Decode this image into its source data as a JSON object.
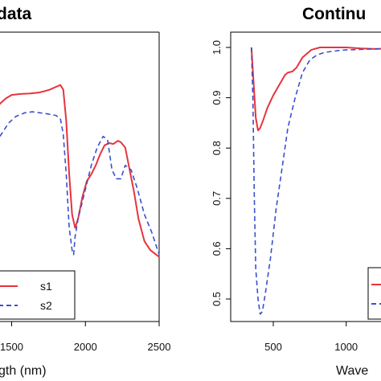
{
  "chart_data": [
    {
      "type": "line",
      "title": "data",
      "xlabel": "gth (nm)",
      "ylabel": "",
      "xlim": [
        400,
        2500
      ],
      "x_ticks": [
        {
          "value": 1500,
          "label": "1500"
        },
        {
          "value": 2000,
          "label": "2000"
        },
        {
          "value": 2500,
          "label": "2500"
        }
      ],
      "y_ticks": [],
      "grid": false,
      "legend": {
        "placement": "bottom-left",
        "entries": [
          "s1",
          "s2"
        ]
      },
      "series": [
        {
          "name": "s1",
          "color": "#e8333c",
          "style": "solid",
          "x": [
            1330,
            1370,
            1410,
            1460,
            1500,
            1560,
            1620,
            1680,
            1720,
            1760,
            1800,
            1830,
            1850,
            1870,
            1890,
            1910,
            1930,
            1950,
            1980,
            2010,
            2040,
            2070,
            2100,
            2130,
            2160,
            2190,
            2220,
            2240,
            2270,
            2300,
            2330,
            2360,
            2400,
            2440,
            2480,
            2500
          ],
          "y": [
            0.905,
            0.92,
            0.935,
            0.95,
            0.958,
            0.96,
            0.961,
            0.963,
            0.966,
            0.97,
            0.976,
            0.98,
            0.97,
            0.9,
            0.78,
            0.69,
            0.66,
            0.68,
            0.73,
            0.765,
            0.78,
            0.8,
            0.825,
            0.845,
            0.85,
            0.848,
            0.855,
            0.852,
            0.84,
            0.79,
            0.74,
            0.68,
            0.63,
            0.61,
            0.6,
            0.595
          ]
        },
        {
          "name": "s2",
          "color": "#3b4fd0",
          "style": "dashed",
          "x": [
            1330,
            1380,
            1430,
            1480,
            1530,
            1590,
            1640,
            1690,
            1750,
            1800,
            1830,
            1850,
            1870,
            1890,
            1910,
            1920,
            1930,
            1950,
            1980,
            2010,
            2040,
            2080,
            2120,
            2150,
            2180,
            2210,
            2240,
            2270,
            2310,
            2350,
            2400,
            2450,
            2500
          ],
          "y": [
            0.82,
            0.845,
            0.87,
            0.895,
            0.91,
            0.918,
            0.92,
            0.918,
            0.915,
            0.912,
            0.905,
            0.87,
            0.78,
            0.66,
            0.61,
            0.6,
            0.64,
            0.68,
            0.72,
            0.76,
            0.8,
            0.84,
            0.865,
            0.858,
            0.79,
            0.77,
            0.77,
            0.8,
            0.79,
            0.75,
            0.69,
            0.65,
            0.6
          ]
        }
      ]
    },
    {
      "type": "line",
      "title": "Continu",
      "xlabel": "Wave",
      "ylabel": "",
      "xlim": [
        300,
        1500
      ],
      "ylim": [
        0.465,
        1.025
      ],
      "x_ticks": [
        {
          "value": 500,
          "label": "500"
        },
        {
          "value": 1000,
          "label": "1000"
        }
      ],
      "y_ticks": [
        {
          "value": 0.5,
          "label": "0.5"
        },
        {
          "value": 0.6,
          "label": "0.6"
        },
        {
          "value": 0.7,
          "label": "0.7"
        },
        {
          "value": 0.8,
          "label": "0.8"
        },
        {
          "value": 0.9,
          "label": "0.9"
        },
        {
          "value": 1.0,
          "label": "1.0"
        }
      ],
      "grid": false,
      "legend": {
        "placement": "bottom-right",
        "entries": []
      },
      "series": [
        {
          "color": "#e8333c",
          "style": "solid",
          "x": [
            350,
            365,
            380,
            395,
            410,
            430,
            460,
            500,
            550,
            580,
            600,
            630,
            660,
            700,
            760,
            820,
            900,
            1000,
            1100,
            1200,
            1300,
            1400,
            1500
          ],
          "y": [
            1.0,
            0.93,
            0.86,
            0.835,
            0.84,
            0.855,
            0.88,
            0.905,
            0.93,
            0.945,
            0.95,
            0.952,
            0.96,
            0.98,
            0.995,
            1.0,
            1.0,
            1.0,
            0.998,
            0.997,
            0.998,
            0.999,
            1.0
          ]
        },
        {
          "color": "#3b4fd0",
          "style": "dashed",
          "x": [
            350,
            360,
            370,
            380,
            395,
            410,
            425,
            445,
            480,
            520,
            560,
            600,
            650,
            700,
            750,
            800,
            850,
            900,
            950,
            1000,
            1100,
            1200,
            1300,
            1400,
            1500
          ],
          "y": [
            1.0,
            0.9,
            0.7,
            0.56,
            0.5,
            0.47,
            0.475,
            0.51,
            0.58,
            0.68,
            0.76,
            0.84,
            0.9,
            0.95,
            0.975,
            0.985,
            0.99,
            0.992,
            0.994,
            0.995,
            0.996,
            0.997,
            0.998,
            0.999,
            1.0
          ]
        }
      ]
    }
  ]
}
